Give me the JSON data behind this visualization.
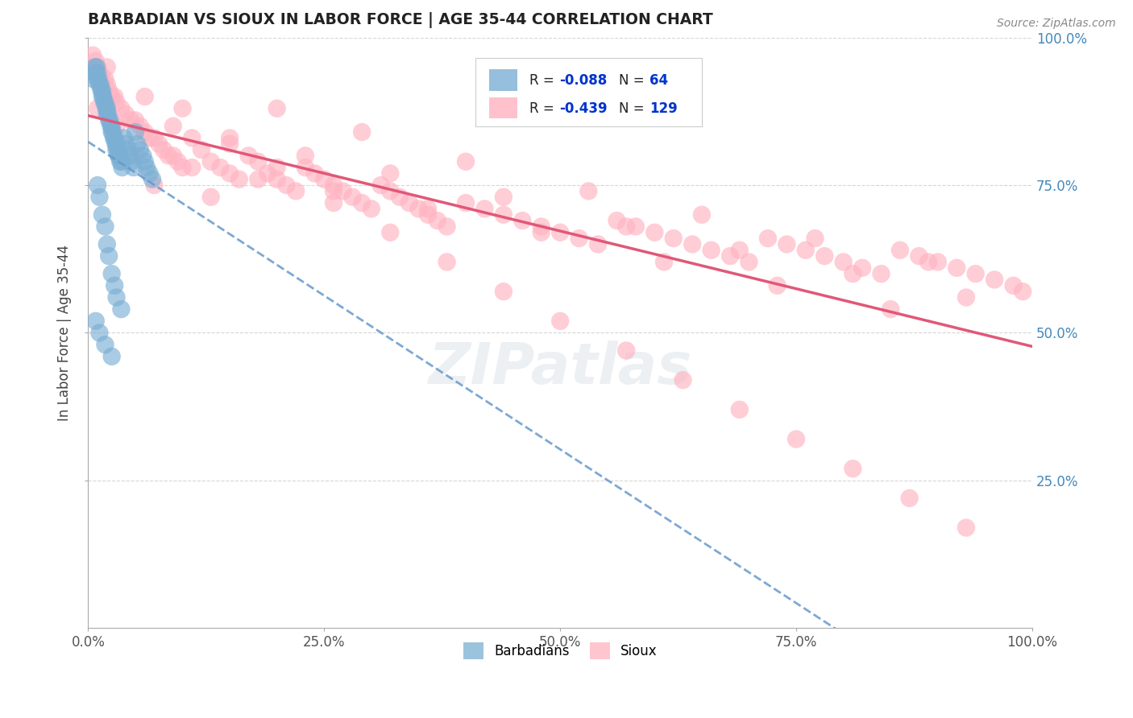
{
  "title": "BARBADIAN VS SIOUX IN LABOR FORCE | AGE 35-44 CORRELATION CHART",
  "source_text": "Source: ZipAtlas.com",
  "ylabel": "In Labor Force | Age 35-44",
  "xlim": [
    0.0,
    1.0
  ],
  "ylim": [
    0.0,
    1.0
  ],
  "xtick_labels": [
    "0.0%",
    "25.0%",
    "50.0%",
    "75.0%",
    "100.0%"
  ],
  "xtick_vals": [
    0.0,
    0.25,
    0.5,
    0.75,
    1.0
  ],
  "ytick_labels": [
    "25.0%",
    "50.0%",
    "75.0%",
    "100.0%"
  ],
  "ytick_vals": [
    0.25,
    0.5,
    0.75,
    1.0
  ],
  "ytick_right_labels": [
    "100.0%",
    "75.0%",
    "50.0%",
    "25.0%"
  ],
  "barbadian_color": "#7BAFD4",
  "sioux_color": "#FFB3C1",
  "sioux_trend_color": "#E05878",
  "barbadian_trend_color": "#6699CC",
  "barbadian_R": -0.088,
  "barbadian_N": 64,
  "sioux_R": -0.439,
  "sioux_N": 129,
  "legend_labels": [
    "Barbadians",
    "Sioux"
  ],
  "r_color": "#0033CC",
  "watermark_text": "ZIPatlas",
  "watermark_color": "#AABCCC",
  "watermark_alpha": 0.22,
  "barbadian_x": [
    0.005,
    0.007,
    0.008,
    0.009,
    0.01,
    0.01,
    0.011,
    0.012,
    0.013,
    0.014,
    0.015,
    0.015,
    0.016,
    0.017,
    0.018,
    0.019,
    0.02,
    0.02,
    0.021,
    0.022,
    0.023,
    0.024,
    0.025,
    0.025,
    0.026,
    0.027,
    0.028,
    0.029,
    0.03,
    0.03,
    0.031,
    0.032,
    0.033,
    0.034,
    0.035,
    0.036,
    0.038,
    0.04,
    0.042,
    0.044,
    0.046,
    0.048,
    0.05,
    0.052,
    0.055,
    0.058,
    0.06,
    0.062,
    0.065,
    0.068,
    0.01,
    0.012,
    0.015,
    0.018,
    0.02,
    0.022,
    0.025,
    0.028,
    0.03,
    0.035,
    0.008,
    0.012,
    0.018,
    0.025
  ],
  "barbadian_y": [
    0.93,
    0.95,
    0.94,
    0.95,
    0.94,
    0.93,
    0.93,
    0.92,
    0.92,
    0.91,
    0.91,
    0.9,
    0.9,
    0.89,
    0.89,
    0.88,
    0.88,
    0.87,
    0.87,
    0.86,
    0.86,
    0.85,
    0.85,
    0.84,
    0.84,
    0.83,
    0.83,
    0.82,
    0.82,
    0.81,
    0.81,
    0.8,
    0.8,
    0.79,
    0.79,
    0.78,
    0.83,
    0.82,
    0.81,
    0.8,
    0.79,
    0.78,
    0.84,
    0.82,
    0.81,
    0.8,
    0.79,
    0.78,
    0.77,
    0.76,
    0.75,
    0.73,
    0.7,
    0.68,
    0.65,
    0.63,
    0.6,
    0.58,
    0.56,
    0.54,
    0.52,
    0.5,
    0.48,
    0.46
  ],
  "sioux_x": [
    0.005,
    0.008,
    0.01,
    0.012,
    0.015,
    0.018,
    0.02,
    0.022,
    0.025,
    0.028,
    0.03,
    0.035,
    0.04,
    0.045,
    0.05,
    0.055,
    0.06,
    0.065,
    0.07,
    0.075,
    0.08,
    0.085,
    0.09,
    0.095,
    0.1,
    0.11,
    0.12,
    0.13,
    0.14,
    0.15,
    0.16,
    0.17,
    0.18,
    0.19,
    0.2,
    0.21,
    0.22,
    0.23,
    0.24,
    0.25,
    0.26,
    0.27,
    0.28,
    0.29,
    0.3,
    0.31,
    0.32,
    0.33,
    0.34,
    0.35,
    0.36,
    0.37,
    0.38,
    0.4,
    0.42,
    0.44,
    0.46,
    0.48,
    0.5,
    0.52,
    0.54,
    0.56,
    0.58,
    0.6,
    0.62,
    0.64,
    0.66,
    0.68,
    0.7,
    0.72,
    0.74,
    0.76,
    0.78,
    0.8,
    0.82,
    0.84,
    0.86,
    0.88,
    0.9,
    0.92,
    0.94,
    0.96,
    0.98,
    0.99,
    0.01,
    0.02,
    0.03,
    0.05,
    0.07,
    0.09,
    0.11,
    0.13,
    0.15,
    0.18,
    0.2,
    0.23,
    0.26,
    0.29,
    0.32,
    0.36,
    0.4,
    0.44,
    0.48,
    0.53,
    0.57,
    0.61,
    0.65,
    0.69,
    0.73,
    0.77,
    0.81,
    0.85,
    0.89,
    0.93,
    0.06,
    0.1,
    0.15,
    0.2,
    0.26,
    0.32,
    0.38,
    0.44,
    0.5,
    0.57,
    0.63,
    0.69,
    0.75,
    0.81,
    0.87,
    0.93
  ],
  "sioux_y": [
    0.97,
    0.96,
    0.95,
    0.94,
    0.93,
    0.93,
    0.92,
    0.91,
    0.9,
    0.9,
    0.89,
    0.88,
    0.87,
    0.86,
    0.86,
    0.85,
    0.84,
    0.83,
    0.83,
    0.82,
    0.81,
    0.8,
    0.8,
    0.79,
    0.78,
    0.83,
    0.81,
    0.79,
    0.78,
    0.77,
    0.76,
    0.8,
    0.79,
    0.77,
    0.76,
    0.75,
    0.74,
    0.78,
    0.77,
    0.76,
    0.75,
    0.74,
    0.73,
    0.72,
    0.71,
    0.75,
    0.74,
    0.73,
    0.72,
    0.71,
    0.7,
    0.69,
    0.68,
    0.72,
    0.71,
    0.7,
    0.69,
    0.68,
    0.67,
    0.66,
    0.65,
    0.69,
    0.68,
    0.67,
    0.66,
    0.65,
    0.64,
    0.63,
    0.62,
    0.66,
    0.65,
    0.64,
    0.63,
    0.62,
    0.61,
    0.6,
    0.64,
    0.63,
    0.62,
    0.61,
    0.6,
    0.59,
    0.58,
    0.57,
    0.88,
    0.95,
    0.85,
    0.8,
    0.75,
    0.85,
    0.78,
    0.73,
    0.82,
    0.76,
    0.88,
    0.8,
    0.74,
    0.84,
    0.77,
    0.71,
    0.79,
    0.73,
    0.67,
    0.74,
    0.68,
    0.62,
    0.7,
    0.64,
    0.58,
    0.66,
    0.6,
    0.54,
    0.62,
    0.56,
    0.9,
    0.88,
    0.83,
    0.78,
    0.72,
    0.67,
    0.62,
    0.57,
    0.52,
    0.47,
    0.42,
    0.37,
    0.32,
    0.27,
    0.22,
    0.17
  ]
}
